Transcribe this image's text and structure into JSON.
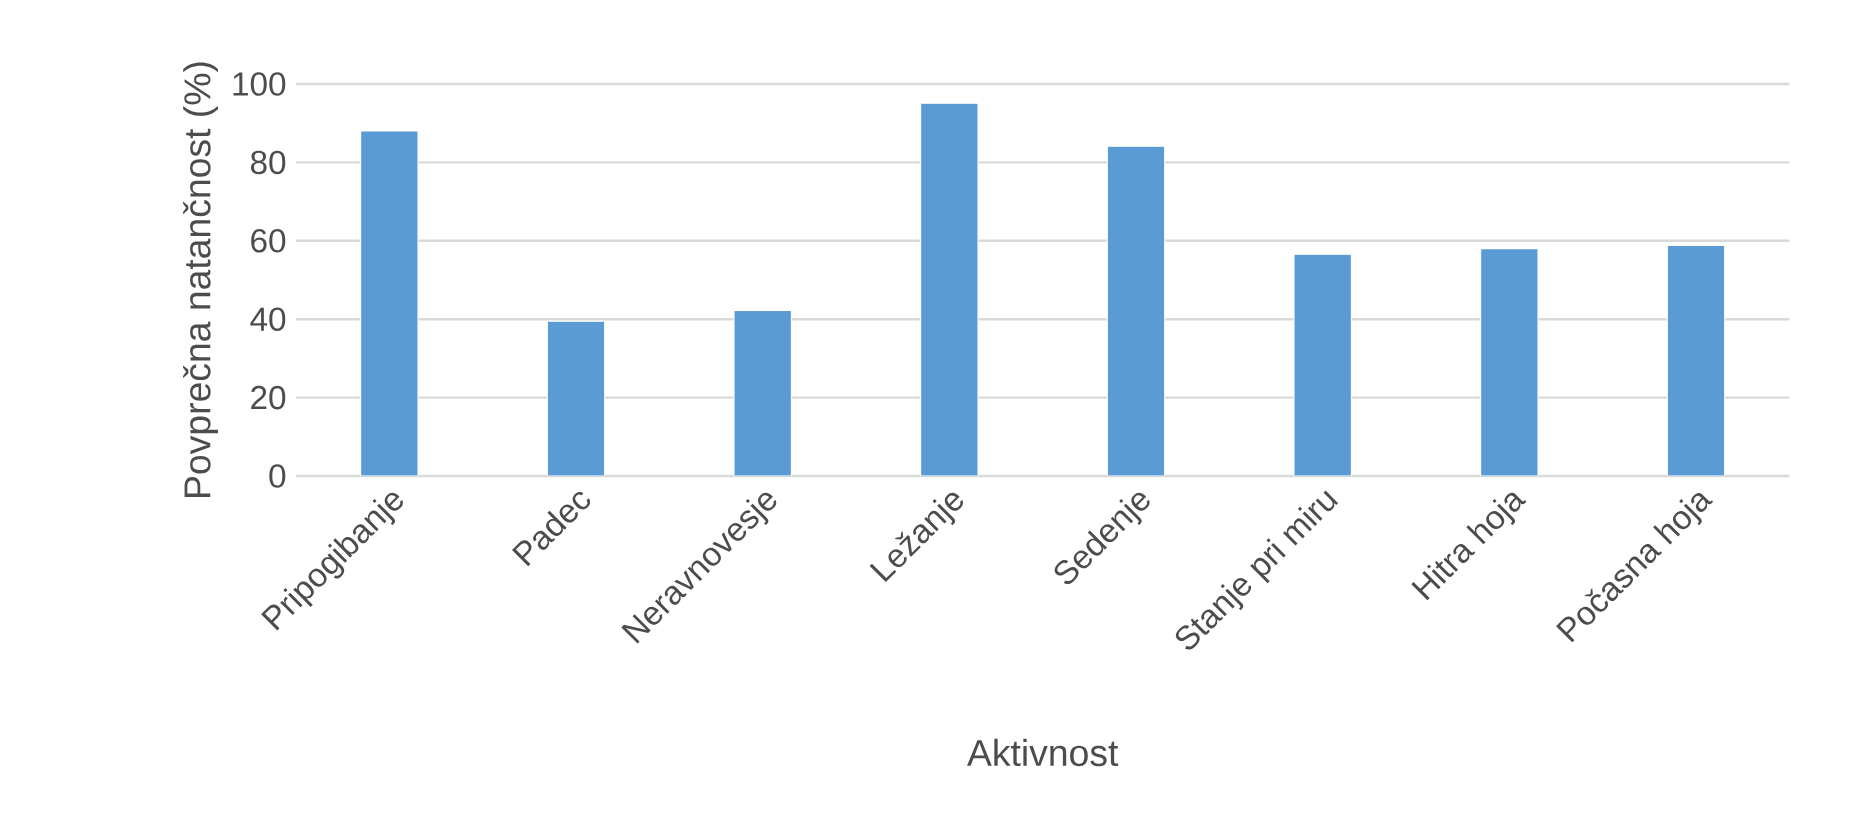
{
  "chart_data": {
    "type": "bar",
    "xlabel": "Aktivnost",
    "ylabel": "Povprečna natančnost (%)",
    "categories": [
      "Pripogibanje",
      "Padec",
      "Neravnovesje",
      "Ležanje",
      "Sedenje",
      "Stanje pri miru",
      "Hitra hoja",
      "Počasna hoja"
    ],
    "values": [
      88,
      39.5,
      42.2,
      95.1,
      84.1,
      56.6,
      58,
      58.8
    ],
    "color": "#5b9bd5",
    "ylim": [
      0,
      100
    ],
    "yticks": [
      0,
      20,
      40,
      60,
      80,
      100
    ],
    "grid": "y"
  }
}
